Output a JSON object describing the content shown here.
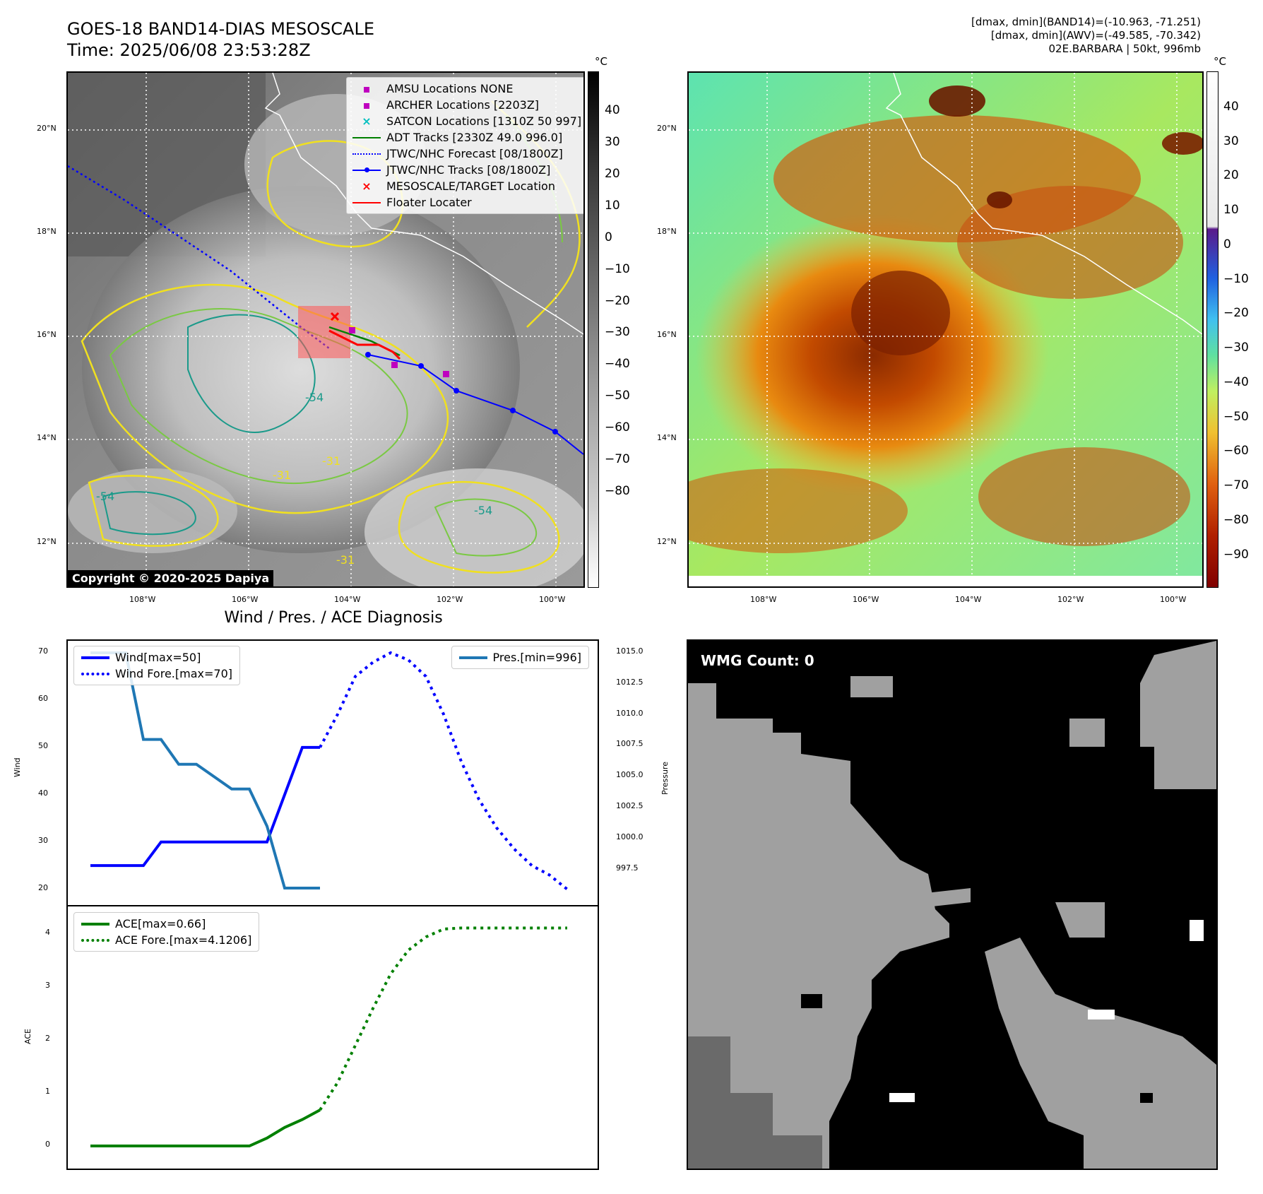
{
  "header": {
    "title_line1": "GOES-18 BAND14-DIAS MESOSCALE",
    "title_line2": "Time: 2025/06/08 23:53:28Z",
    "info_line1": "[dmax, dmin](BAND14)=(-10.963, -71.251)",
    "info_line2": "[dmax, dmin](AWV)=(-49.585, -70.342)",
    "info_line3": "02E.BARBARA | 50kt, 996mb"
  },
  "map": {
    "lat_labels": [
      "20°N",
      "18°N",
      "16°N",
      "14°N",
      "12°N"
    ],
    "lon_labels": [
      "108°W",
      "106°W",
      "104°W",
      "102°W",
      "100°W"
    ],
    "contour_labels": [
      "-31",
      "-54",
      "-31",
      "-31",
      "-54",
      "-54",
      "-54",
      "-31",
      "-31",
      "-54",
      "-31",
      "-54"
    ],
    "copyright": "Copyright © 2020-2025 Dapiya",
    "legend": [
      {
        "label": "AMSU Locations NONE",
        "marker": "square",
        "color": "#bf00bf"
      },
      {
        "label": "ARCHER Locations [2203Z]",
        "marker": "square",
        "color": "#bf00bf"
      },
      {
        "label": "SATCON Locations [1310Z 50 997]",
        "marker": "x",
        "color": "#00bfbf"
      },
      {
        "label": "ADT Tracks [2330Z 49.0 996.0]",
        "marker": "line",
        "color": "#008000"
      },
      {
        "label": "JTWC/NHC Forecast [08/1800Z]",
        "marker": "dotted",
        "color": "#0000ff"
      },
      {
        "label": "JTWC/NHC Tracks [08/1800Z]",
        "marker": "line-dot",
        "color": "#0000ff"
      },
      {
        "label": "MESOSCALE/TARGET Location",
        "marker": "x",
        "color": "#ff0000"
      },
      {
        "label": "Floater Locater",
        "marker": "line",
        "color": "#ff0000"
      }
    ]
  },
  "colorbar_left": {
    "unit": "°C",
    "ticks": [
      "40",
      "30",
      "20",
      "10",
      "0",
      "−10",
      "−20",
      "−30",
      "−40",
      "−50",
      "−60",
      "−70",
      "−80"
    ]
  },
  "colorbar_right": {
    "unit": "°C",
    "ticks": [
      "40",
      "30",
      "20",
      "10",
      "0",
      "−10",
      "−20",
      "−30",
      "−40",
      "−50",
      "−60",
      "−70",
      "−80",
      "−90"
    ]
  },
  "diagnosis": {
    "title": "Wind / Pres. / ACE Diagnosis",
    "wind_ylabel": "Wind",
    "pres_ylabel": "Pressure",
    "ace_ylabel": "ACE",
    "wind_ticks": [
      "70",
      "60",
      "50",
      "40",
      "30",
      "20"
    ],
    "pres_ticks": [
      "1015.0",
      "1012.5",
      "1010.0",
      "1007.5",
      "1005.0",
      "1002.5",
      "1000.0",
      "997.5"
    ],
    "ace_ticks": [
      "4",
      "3",
      "2",
      "1",
      "0"
    ],
    "legend_wind": "Wind[max=50]",
    "legend_wind_fore": "Wind Fore.[max=70]",
    "legend_pres": "Pres.[min=996]",
    "legend_ace": "ACE[max=0.66]",
    "legend_ace_fore": "ACE Fore.[max=4.1206]",
    "wmg": "WMG Count: 0"
  },
  "chart_data": [
    {
      "type": "line",
      "title": "Wind / Pres. / ACE Diagnosis",
      "ylabel": "Wind",
      "ylim": [
        18.5,
        71.5
      ],
      "xlim": [
        0,
        28
      ],
      "series": [
        {
          "name": "Wind[max=50]",
          "color": "#0000ff",
          "style": "solid",
          "x": [
            0,
            3,
            4,
            9,
            10,
            12,
            13
          ],
          "values": [
            25,
            25,
            30,
            30,
            30,
            50,
            50
          ]
        },
        {
          "name": "Wind Fore.[max=70]",
          "color": "#0000ff",
          "style": "dotted",
          "x": [
            13,
            14,
            15,
            16,
            17,
            18,
            19,
            20,
            21,
            22,
            23,
            24,
            25,
            26,
            27
          ],
          "values": [
            50,
            57,
            65,
            68,
            70,
            68.5,
            65,
            57,
            47,
            39,
            33,
            28.5,
            25,
            23,
            20
          ]
        }
      ]
    },
    {
      "type": "line",
      "ylabel": "Pressure",
      "ylim": [
        995.6,
        1015.8
      ],
      "xlim": [
        0,
        28
      ],
      "series": [
        {
          "name": "Pres.[min=996]",
          "color": "#1f77b4",
          "style": "solid",
          "x": [
            0,
            2,
            3,
            4,
            5,
            6,
            7,
            8,
            9,
            10,
            11,
            12,
            13
          ],
          "values": [
            1015,
            1015,
            1008,
            1008,
            1006,
            1006,
            1005,
            1004,
            1004,
            1001,
            996,
            996,
            996
          ]
        }
      ]
    },
    {
      "type": "line",
      "ylabel": "ACE",
      "ylim": [
        -0.2,
        4.3
      ],
      "xlim": [
        0,
        28
      ],
      "series": [
        {
          "name": "ACE[max=0.66]",
          "color": "#008000",
          "style": "solid",
          "x": [
            0,
            3,
            6,
            9,
            10,
            11,
            12,
            13
          ],
          "values": [
            0,
            0,
            0,
            0,
            0.15,
            0.35,
            0.5,
            0.68
          ]
        },
        {
          "name": "ACE Fore.[max=4.1206]",
          "color": "#008000",
          "style": "dotted",
          "x": [
            13,
            14,
            15,
            16,
            17,
            18,
            19,
            20,
            21,
            22,
            23,
            24,
            25,
            26,
            27
          ],
          "values": [
            0.68,
            1.2,
            1.9,
            2.6,
            3.25,
            3.7,
            3.95,
            4.1,
            4.12,
            4.12,
            4.12,
            4.12,
            4.12,
            4.12,
            4.12
          ]
        }
      ]
    }
  ]
}
